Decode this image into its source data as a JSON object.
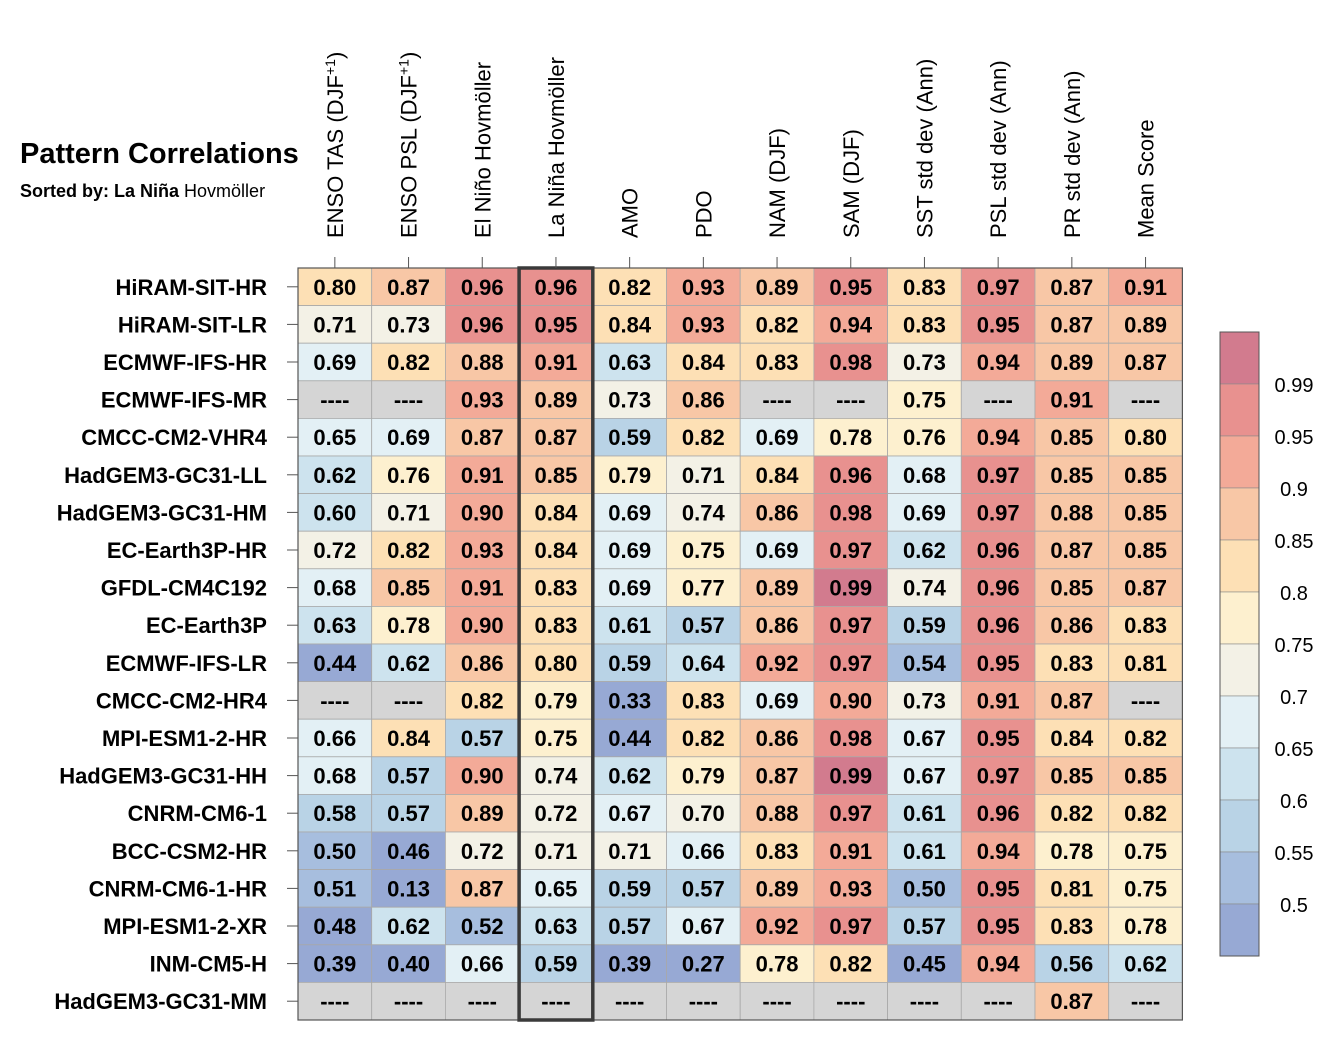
{
  "chart_data": {
    "type": "heatmap",
    "title": "Pattern Correlations",
    "subtitle_prefix": "Sorted by: La Niña",
    "subtitle_suffix": "Hovmöller",
    "columns": [
      "ENSO TAS (DJF+1)",
      "ENSO PSL (DJF+1)",
      "El Niño Hovmöller",
      "La Niña Hovmöller",
      "AMO",
      "PDO",
      "NAM (DJF)",
      "SAM (DJF)",
      "SST std dev (Ann)",
      "PSL std dev (Ann)",
      "PR std dev (Ann)",
      "Mean Score"
    ],
    "highlighted_column": "La Niña Hovmöller",
    "missing_label": "----",
    "rows": [
      {
        "model": "HiRAM-SIT-HR",
        "values": [
          0.8,
          0.87,
          0.96,
          0.96,
          0.82,
          0.93,
          0.89,
          0.95,
          0.83,
          0.97,
          0.87,
          0.91
        ]
      },
      {
        "model": "HiRAM-SIT-LR",
        "values": [
          0.71,
          0.73,
          0.96,
          0.95,
          0.84,
          0.93,
          0.82,
          0.94,
          0.83,
          0.95,
          0.87,
          0.89
        ]
      },
      {
        "model": "ECMWF-IFS-HR",
        "values": [
          0.69,
          0.82,
          0.88,
          0.91,
          0.63,
          0.84,
          0.83,
          0.98,
          0.73,
          0.94,
          0.89,
          0.87
        ]
      },
      {
        "model": "ECMWF-IFS-MR",
        "values": [
          null,
          null,
          0.93,
          0.89,
          0.73,
          0.86,
          null,
          null,
          0.75,
          null,
          0.91,
          null
        ]
      },
      {
        "model": "CMCC-CM2-VHR4",
        "values": [
          0.65,
          0.69,
          0.87,
          0.87,
          0.59,
          0.82,
          0.69,
          0.78,
          0.76,
          0.94,
          0.85,
          0.8
        ]
      },
      {
        "model": "HadGEM3-GC31-LL",
        "values": [
          0.62,
          0.76,
          0.91,
          0.85,
          0.79,
          0.71,
          0.84,
          0.96,
          0.68,
          0.97,
          0.85,
          0.85
        ]
      },
      {
        "model": "HadGEM3-GC31-HM",
        "values": [
          0.6,
          0.71,
          0.9,
          0.84,
          0.69,
          0.74,
          0.86,
          0.98,
          0.69,
          0.97,
          0.88,
          0.85
        ]
      },
      {
        "model": "EC-Earth3P-HR",
        "values": [
          0.72,
          0.82,
          0.93,
          0.84,
          0.69,
          0.75,
          0.69,
          0.97,
          0.62,
          0.96,
          0.87,
          0.85
        ]
      },
      {
        "model": "GFDL-CM4C192",
        "values": [
          0.68,
          0.85,
          0.91,
          0.83,
          0.69,
          0.77,
          0.89,
          0.99,
          0.74,
          0.96,
          0.85,
          0.87
        ]
      },
      {
        "model": "EC-Earth3P",
        "values": [
          0.63,
          0.78,
          0.9,
          0.83,
          0.61,
          0.57,
          0.86,
          0.97,
          0.59,
          0.96,
          0.86,
          0.83
        ]
      },
      {
        "model": "ECMWF-IFS-LR",
        "values": [
          0.44,
          0.62,
          0.86,
          0.8,
          0.59,
          0.64,
          0.92,
          0.97,
          0.54,
          0.95,
          0.83,
          0.81
        ]
      },
      {
        "model": "CMCC-CM2-HR4",
        "values": [
          null,
          null,
          0.82,
          0.79,
          0.33,
          0.83,
          0.69,
          0.9,
          0.73,
          0.91,
          0.87,
          null
        ]
      },
      {
        "model": "MPI-ESM1-2-HR",
        "values": [
          0.66,
          0.84,
          0.57,
          0.75,
          0.44,
          0.82,
          0.86,
          0.98,
          0.67,
          0.95,
          0.84,
          0.82
        ]
      },
      {
        "model": "HadGEM3-GC31-HH",
        "values": [
          0.68,
          0.57,
          0.9,
          0.74,
          0.62,
          0.79,
          0.87,
          0.99,
          0.67,
          0.97,
          0.85,
          0.85
        ]
      },
      {
        "model": "CNRM-CM6-1",
        "values": [
          0.58,
          0.57,
          0.89,
          0.72,
          0.67,
          0.7,
          0.88,
          0.97,
          0.61,
          0.96,
          0.82,
          0.82
        ]
      },
      {
        "model": "BCC-CSM2-HR",
        "values": [
          0.5,
          0.46,
          0.72,
          0.71,
          0.71,
          0.66,
          0.83,
          0.91,
          0.61,
          0.94,
          0.78,
          0.75
        ]
      },
      {
        "model": "CNRM-CM6-1-HR",
        "values": [
          0.51,
          0.13,
          0.87,
          0.65,
          0.59,
          0.57,
          0.89,
          0.93,
          0.5,
          0.95,
          0.81,
          0.75
        ]
      },
      {
        "model": "MPI-ESM1-2-XR",
        "values": [
          0.48,
          0.62,
          0.52,
          0.63,
          0.57,
          0.67,
          0.92,
          0.97,
          0.57,
          0.95,
          0.83,
          0.78
        ]
      },
      {
        "model": "INM-CM5-H",
        "values": [
          0.39,
          0.4,
          0.66,
          0.59,
          0.39,
          0.27,
          0.78,
          0.82,
          0.45,
          0.94,
          0.56,
          0.62
        ]
      },
      {
        "model": "HadGEM3-GC31-MM",
        "values": [
          null,
          null,
          null,
          null,
          null,
          null,
          null,
          null,
          null,
          null,
          0.87,
          null
        ]
      }
    ],
    "colorbar": {
      "labels": [
        "0.99",
        "0.95",
        "0.9",
        "0.85",
        "0.8",
        "0.75",
        "0.7",
        "0.65",
        "0.6",
        "0.55",
        "0.5"
      ],
      "thresholds": [
        0.99,
        0.95,
        0.9,
        0.85,
        0.8,
        0.75,
        0.7,
        0.65,
        0.6,
        0.55,
        0.5
      ],
      "colors": [
        "#d27b8e",
        "#e8918f",
        "#f3aa98",
        "#f8c7a6",
        "#fde0b5",
        "#fdf0cf",
        "#f3f1e6",
        "#e3f0f5",
        "#cde3ee",
        "#b9d3e6",
        "#a7bede",
        "#97a9d4"
      ],
      "missing_color": "#d5d5d5"
    }
  }
}
